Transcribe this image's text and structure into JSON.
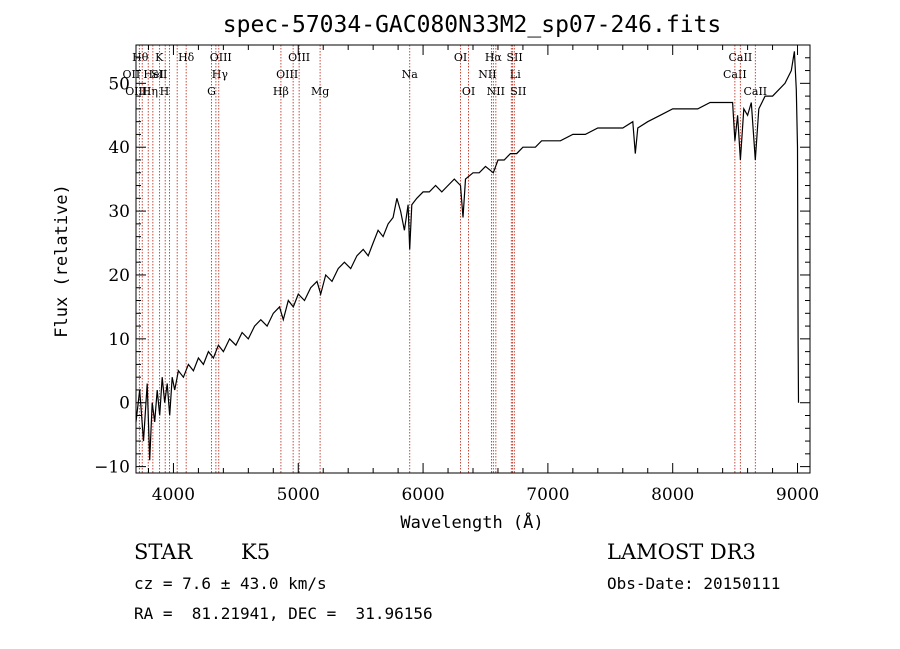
{
  "chart_data": {
    "type": "line",
    "title": "spec-57034-GAC080N33M2_sp07-246.fits",
    "xlabel": "Wavelength (Å)",
    "ylabel": "Flux (relative)",
    "xlim": [
      3700,
      9100
    ],
    "ylim": [
      -11,
      56
    ],
    "xticks": [
      4000,
      5000,
      6000,
      7000,
      8000,
      9000
    ],
    "xtick_labels": [
      "4000",
      "5000",
      "6000",
      "7000",
      "8000",
      "9000"
    ],
    "yticks": [
      -10,
      0,
      10,
      20,
      30,
      40,
      50
    ],
    "ytick_labels": [
      "−10",
      "0",
      "10",
      "20",
      "30",
      "40",
      "50"
    ],
    "series": [
      {
        "name": "spectrum",
        "points": [
          [
            3700,
            -3
          ],
          [
            3730,
            2
          ],
          [
            3760,
            -6
          ],
          [
            3790,
            3
          ],
          [
            3810,
            -9
          ],
          [
            3830,
            0
          ],
          [
            3850,
            -3
          ],
          [
            3870,
            2
          ],
          [
            3890,
            -2
          ],
          [
            3910,
            4
          ],
          [
            3930,
            0
          ],
          [
            3950,
            3
          ],
          [
            3970,
            -2
          ],
          [
            3990,
            4
          ],
          [
            4010,
            2
          ],
          [
            4040,
            5
          ],
          [
            4080,
            4
          ],
          [
            4120,
            6
          ],
          [
            4160,
            5
          ],
          [
            4200,
            7
          ],
          [
            4240,
            6
          ],
          [
            4280,
            8
          ],
          [
            4320,
            7
          ],
          [
            4360,
            9
          ],
          [
            4400,
            8
          ],
          [
            4450,
            10
          ],
          [
            4500,
            9
          ],
          [
            4550,
            11
          ],
          [
            4600,
            10
          ],
          [
            4650,
            12
          ],
          [
            4700,
            13
          ],
          [
            4750,
            12
          ],
          [
            4800,
            14
          ],
          [
            4850,
            15
          ],
          [
            4880,
            13
          ],
          [
            4920,
            16
          ],
          [
            4960,
            15
          ],
          [
            5000,
            17
          ],
          [
            5050,
            16
          ],
          [
            5100,
            18
          ],
          [
            5150,
            19
          ],
          [
            5180,
            17
          ],
          [
            5220,
            20
          ],
          [
            5270,
            19
          ],
          [
            5320,
            21
          ],
          [
            5370,
            22
          ],
          [
            5420,
            21
          ],
          [
            5470,
            23
          ],
          [
            5520,
            24
          ],
          [
            5560,
            23
          ],
          [
            5600,
            25
          ],
          [
            5640,
            27
          ],
          [
            5680,
            26
          ],
          [
            5720,
            28
          ],
          [
            5760,
            29
          ],
          [
            5790,
            32
          ],
          [
            5820,
            30
          ],
          [
            5850,
            27
          ],
          [
            5880,
            31
          ],
          [
            5893,
            24
          ],
          [
            5910,
            31
          ],
          [
            5950,
            32
          ],
          [
            6000,
            33
          ],
          [
            6050,
            33
          ],
          [
            6100,
            34
          ],
          [
            6150,
            33
          ],
          [
            6200,
            34
          ],
          [
            6250,
            35
          ],
          [
            6300,
            34
          ],
          [
            6320,
            29
          ],
          [
            6340,
            35
          ],
          [
            6400,
            36
          ],
          [
            6450,
            36
          ],
          [
            6500,
            37
          ],
          [
            6563,
            36
          ],
          [
            6600,
            38
          ],
          [
            6650,
            38
          ],
          [
            6700,
            39
          ],
          [
            6750,
            39
          ],
          [
            6800,
            40
          ],
          [
            6850,
            40
          ],
          [
            6900,
            40
          ],
          [
            6950,
            41
          ],
          [
            7000,
            41
          ],
          [
            7100,
            41
          ],
          [
            7200,
            42
          ],
          [
            7300,
            42
          ],
          [
            7400,
            43
          ],
          [
            7500,
            43
          ],
          [
            7600,
            43
          ],
          [
            7680,
            44
          ],
          [
            7700,
            39
          ],
          [
            7720,
            43
          ],
          [
            7800,
            44
          ],
          [
            7900,
            45
          ],
          [
            8000,
            46
          ],
          [
            8100,
            46
          ],
          [
            8200,
            46
          ],
          [
            8300,
            47
          ],
          [
            8400,
            47
          ],
          [
            8480,
            47
          ],
          [
            8498,
            41
          ],
          [
            8520,
            45
          ],
          [
            8542,
            38
          ],
          [
            8570,
            46
          ],
          [
            8600,
            45
          ],
          [
            8630,
            47
          ],
          [
            8662,
            38
          ],
          [
            8690,
            46
          ],
          [
            8740,
            48
          ],
          [
            8800,
            48
          ],
          [
            8850,
            49
          ],
          [
            8900,
            50
          ],
          [
            8950,
            52
          ],
          [
            8975,
            55
          ],
          [
            8990,
            49
          ],
          [
            9000,
            40
          ],
          [
            9005,
            10
          ],
          [
            9008,
            0
          ]
        ]
      }
    ],
    "lines": [
      {
        "wavelength": 3750,
        "label": "Hθ",
        "row": 0,
        "offset": -2
      },
      {
        "wavelength": 3727,
        "label": "OII",
        "row": 1,
        "offset": -8
      },
      {
        "wavelength": 3798,
        "label": "OIII",
        "row": 2,
        "offset": -12
      },
      {
        "wavelength": 3835,
        "label": "Hη",
        "row": 2,
        "offset": -3
      },
      {
        "wavelength": 3889,
        "label": "HeI",
        "row": 1,
        "offset": -6
      },
      {
        "wavelength": 3934,
        "label": "K",
        "row": 0,
        "offset": -6
      },
      {
        "wavelength": 3968,
        "label": "H",
        "row": 2,
        "offset": -5
      },
      {
        "wavelength": 4030,
        "label": "SII",
        "row": 1,
        "offset": -18
      },
      {
        "wavelength": 4102,
        "label": "Hδ",
        "row": 0,
        "offset": 0
      },
      {
        "wavelength": 4305,
        "label": "G",
        "row": 2,
        "offset": 0
      },
      {
        "wavelength": 4340,
        "label": "Hγ",
        "row": 1,
        "offset": 4
      },
      {
        "wavelength": 4363,
        "label": "OIII",
        "row": 0,
        "offset": 2
      },
      {
        "wavelength": 4861,
        "label": "Hβ",
        "row": 2,
        "offset": 0
      },
      {
        "wavelength": 4959,
        "label": "OIII",
        "row": 1,
        "offset": -6
      },
      {
        "wavelength": 5007,
        "label": "OIII",
        "row": 0,
        "offset": 0
      },
      {
        "wavelength": 5175,
        "label": "Mg",
        "row": 2,
        "offset": 0
      },
      {
        "wavelength": 5893,
        "label": "Na",
        "row": 1,
        "offset": 0
      },
      {
        "wavelength": 6300,
        "label": "OI",
        "row": 0,
        "offset": 0
      },
      {
        "wavelength": 6364,
        "label": "OI",
        "row": 2,
        "offset": 0
      },
      {
        "wavelength": 6548,
        "label": "NII",
        "row": 1,
        "offset": -4
      },
      {
        "wavelength": 6563,
        "label": "Hα",
        "row": 0,
        "offset": 0
      },
      {
        "wavelength": 6583,
        "label": "NII",
        "row": 2,
        "offset": 0
      },
      {
        "wavelength": 6707,
        "label": "Li",
        "row": 1,
        "offset": 4
      },
      {
        "wavelength": 6717,
        "label": "SII",
        "row": 0,
        "offset": 2
      },
      {
        "wavelength": 6731,
        "label": "SII",
        "row": 2,
        "offset": 4
      },
      {
        "wavelength": 8498,
        "label": "CaII",
        "row": 1,
        "offset": 0
      },
      {
        "wavelength": 8542,
        "label": "CaII",
        "row": 0,
        "offset": 0
      },
      {
        "wavelength": 8662,
        "label": "CaII",
        "row": 2,
        "offset": 0
      }
    ],
    "line_color": "#c0392b",
    "spectrum_color": "#000000"
  },
  "info": {
    "object_class": "STAR",
    "subclass": "K5",
    "survey": "LAMOST DR3",
    "redshift": "cz = 7.6 ± 43.0 km/s",
    "obs_date": "Obs-Date: 20150111",
    "coords": "RA =  81.21941, DEC =  31.96156"
  }
}
